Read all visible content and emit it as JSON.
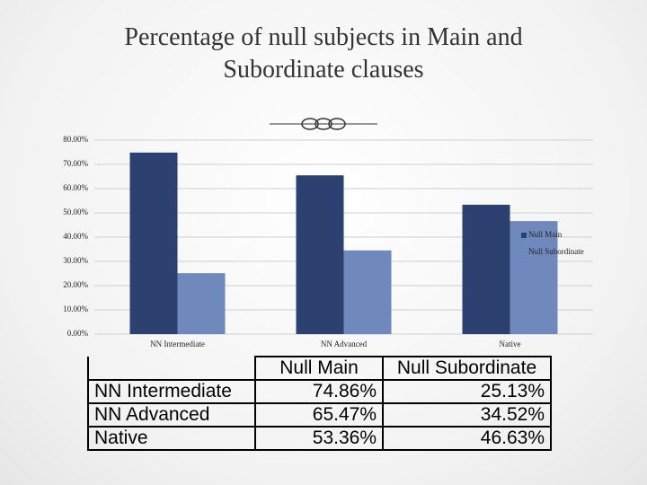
{
  "chart_data": {
    "type": "bar",
    "title": "Percentage of null subjects in Main and Subordinate clauses",
    "categories": [
      "NN Intermediate",
      "NN Advanced",
      "Native"
    ],
    "series": [
      {
        "name": "Null Main",
        "color": "#2c4170",
        "values": [
          74.86,
          65.47,
          53.36
        ]
      },
      {
        "name": "Null Subordinate",
        "color": "#7089bd",
        "values": [
          25.13,
          34.52,
          46.63
        ]
      }
    ],
    "ylim": [
      0,
      80
    ],
    "yticks": [
      {
        "value": 0,
        "label": "0.00%"
      },
      {
        "value": 10,
        "label": "10.00%"
      },
      {
        "value": 20,
        "label": "20.00%"
      },
      {
        "value": 30,
        "label": "30.00%"
      },
      {
        "value": 40,
        "label": "40.00%"
      },
      {
        "value": 50,
        "label": "50.00%"
      },
      {
        "value": 60,
        "label": "60.00%"
      },
      {
        "value": 70,
        "label": "70.00%"
      },
      {
        "value": 80,
        "label": "80.00%"
      }
    ],
    "grid": true,
    "legend": "right"
  },
  "table": {
    "header": [
      "Null Main",
      "Null Subordinate"
    ],
    "rows": [
      [
        "NN Intermediate",
        "74.86%",
        "25.13%"
      ],
      [
        "NN Advanced",
        "65.47%",
        "34.52%"
      ],
      [
        "Native",
        "53.36%",
        "46.63%"
      ]
    ]
  }
}
